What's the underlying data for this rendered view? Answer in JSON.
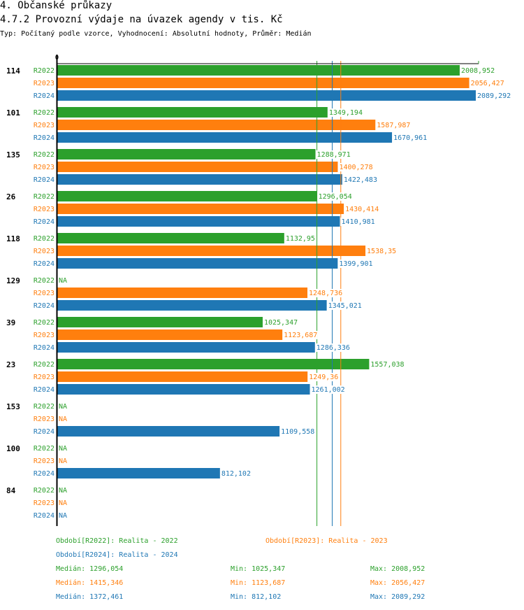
{
  "header": {
    "section_title": "4. Občanské průkazy",
    "chart_title": "4.7.2 Provozní výdaje na úvazek agendy v tis. Kč",
    "subtitle": "Typ: Počítaný podle vzorce, Vyhodnocení: Absolutní hodnoty, Průměr: Medián"
  },
  "colors": {
    "R2022": "#2ca02c",
    "R2023": "#ff7f0e",
    "R2024": "#1f77b4"
  },
  "chart_data": {
    "type": "bar",
    "orientation": "horizontal",
    "title": "4.7.2 Provozní výdaje na úvazek agendy v tis. Kč",
    "xlabel": "",
    "ylabel": "",
    "x_tick_labels": [
      "0"
    ],
    "xlim": [
      0,
      2100
    ],
    "grid": false,
    "categories": [
      "114",
      "101",
      "135",
      "26",
      "118",
      "129",
      "39",
      "23",
      "153",
      "100",
      "84"
    ],
    "series": [
      {
        "name": "R2022",
        "values": [
          2008.952,
          1349.194,
          1288.971,
          1296.054,
          1132.95,
          null,
          1025.347,
          1557.038,
          null,
          null,
          null
        ],
        "labels": [
          "2008,952",
          "1349,194",
          "1288,971",
          "1296,054",
          "1132,95",
          "NA",
          "1025,347",
          "1557,038",
          "NA",
          "NA",
          "NA"
        ]
      },
      {
        "name": "R2023",
        "values": [
          2056.427,
          1587.987,
          1400.278,
          1430.414,
          1538.35,
          1248.736,
          1123.687,
          1249.36,
          null,
          null,
          null
        ],
        "labels": [
          "2056,427",
          "1587,987",
          "1400,278",
          "1430,414",
          "1538,35",
          "1248,736",
          "1123,687",
          "1249,36",
          "NA",
          "NA",
          "NA"
        ]
      },
      {
        "name": "R2024",
        "values": [
          2089.292,
          1670.961,
          1422.483,
          1410.981,
          1399.901,
          1345.021,
          1286.336,
          1261.002,
          1109.558,
          812.102,
          null
        ],
        "labels": [
          "2089,292",
          "1670,961",
          "1422,483",
          "1410,981",
          "1399,901",
          "1345,021",
          "1286,336",
          "1261,002",
          "1109,558",
          "812,102",
          "NA"
        ]
      }
    ],
    "medians": [
      {
        "series": "R2022",
        "value": 1296.054
      },
      {
        "series": "R2023",
        "value": 1415.346
      },
      {
        "series": "R2024",
        "value": 1372.461
      }
    ]
  },
  "legend": {
    "periods": [
      {
        "series": "R2022",
        "text": "Období[R2022]: Realita - 2022"
      },
      {
        "series": "R2023",
        "text": "Období[R2023]: Realita - 2023"
      },
      {
        "series": "R2024",
        "text": "Období[R2024]: Realita - 2024"
      }
    ],
    "stats": [
      {
        "series": "R2022",
        "median": "Medián: 1296,054",
        "min": "Min: 1025,347",
        "max": "Max: 2008,952"
      },
      {
        "series": "R2023",
        "median": "Medián: 1415,346",
        "min": "Min: 1123,687",
        "max": "Max: 2056,427"
      },
      {
        "series": "R2024",
        "median": "Medián: 1372,461",
        "min": "Min: 812,102",
        "max": "Max: 2089,292"
      }
    ]
  }
}
